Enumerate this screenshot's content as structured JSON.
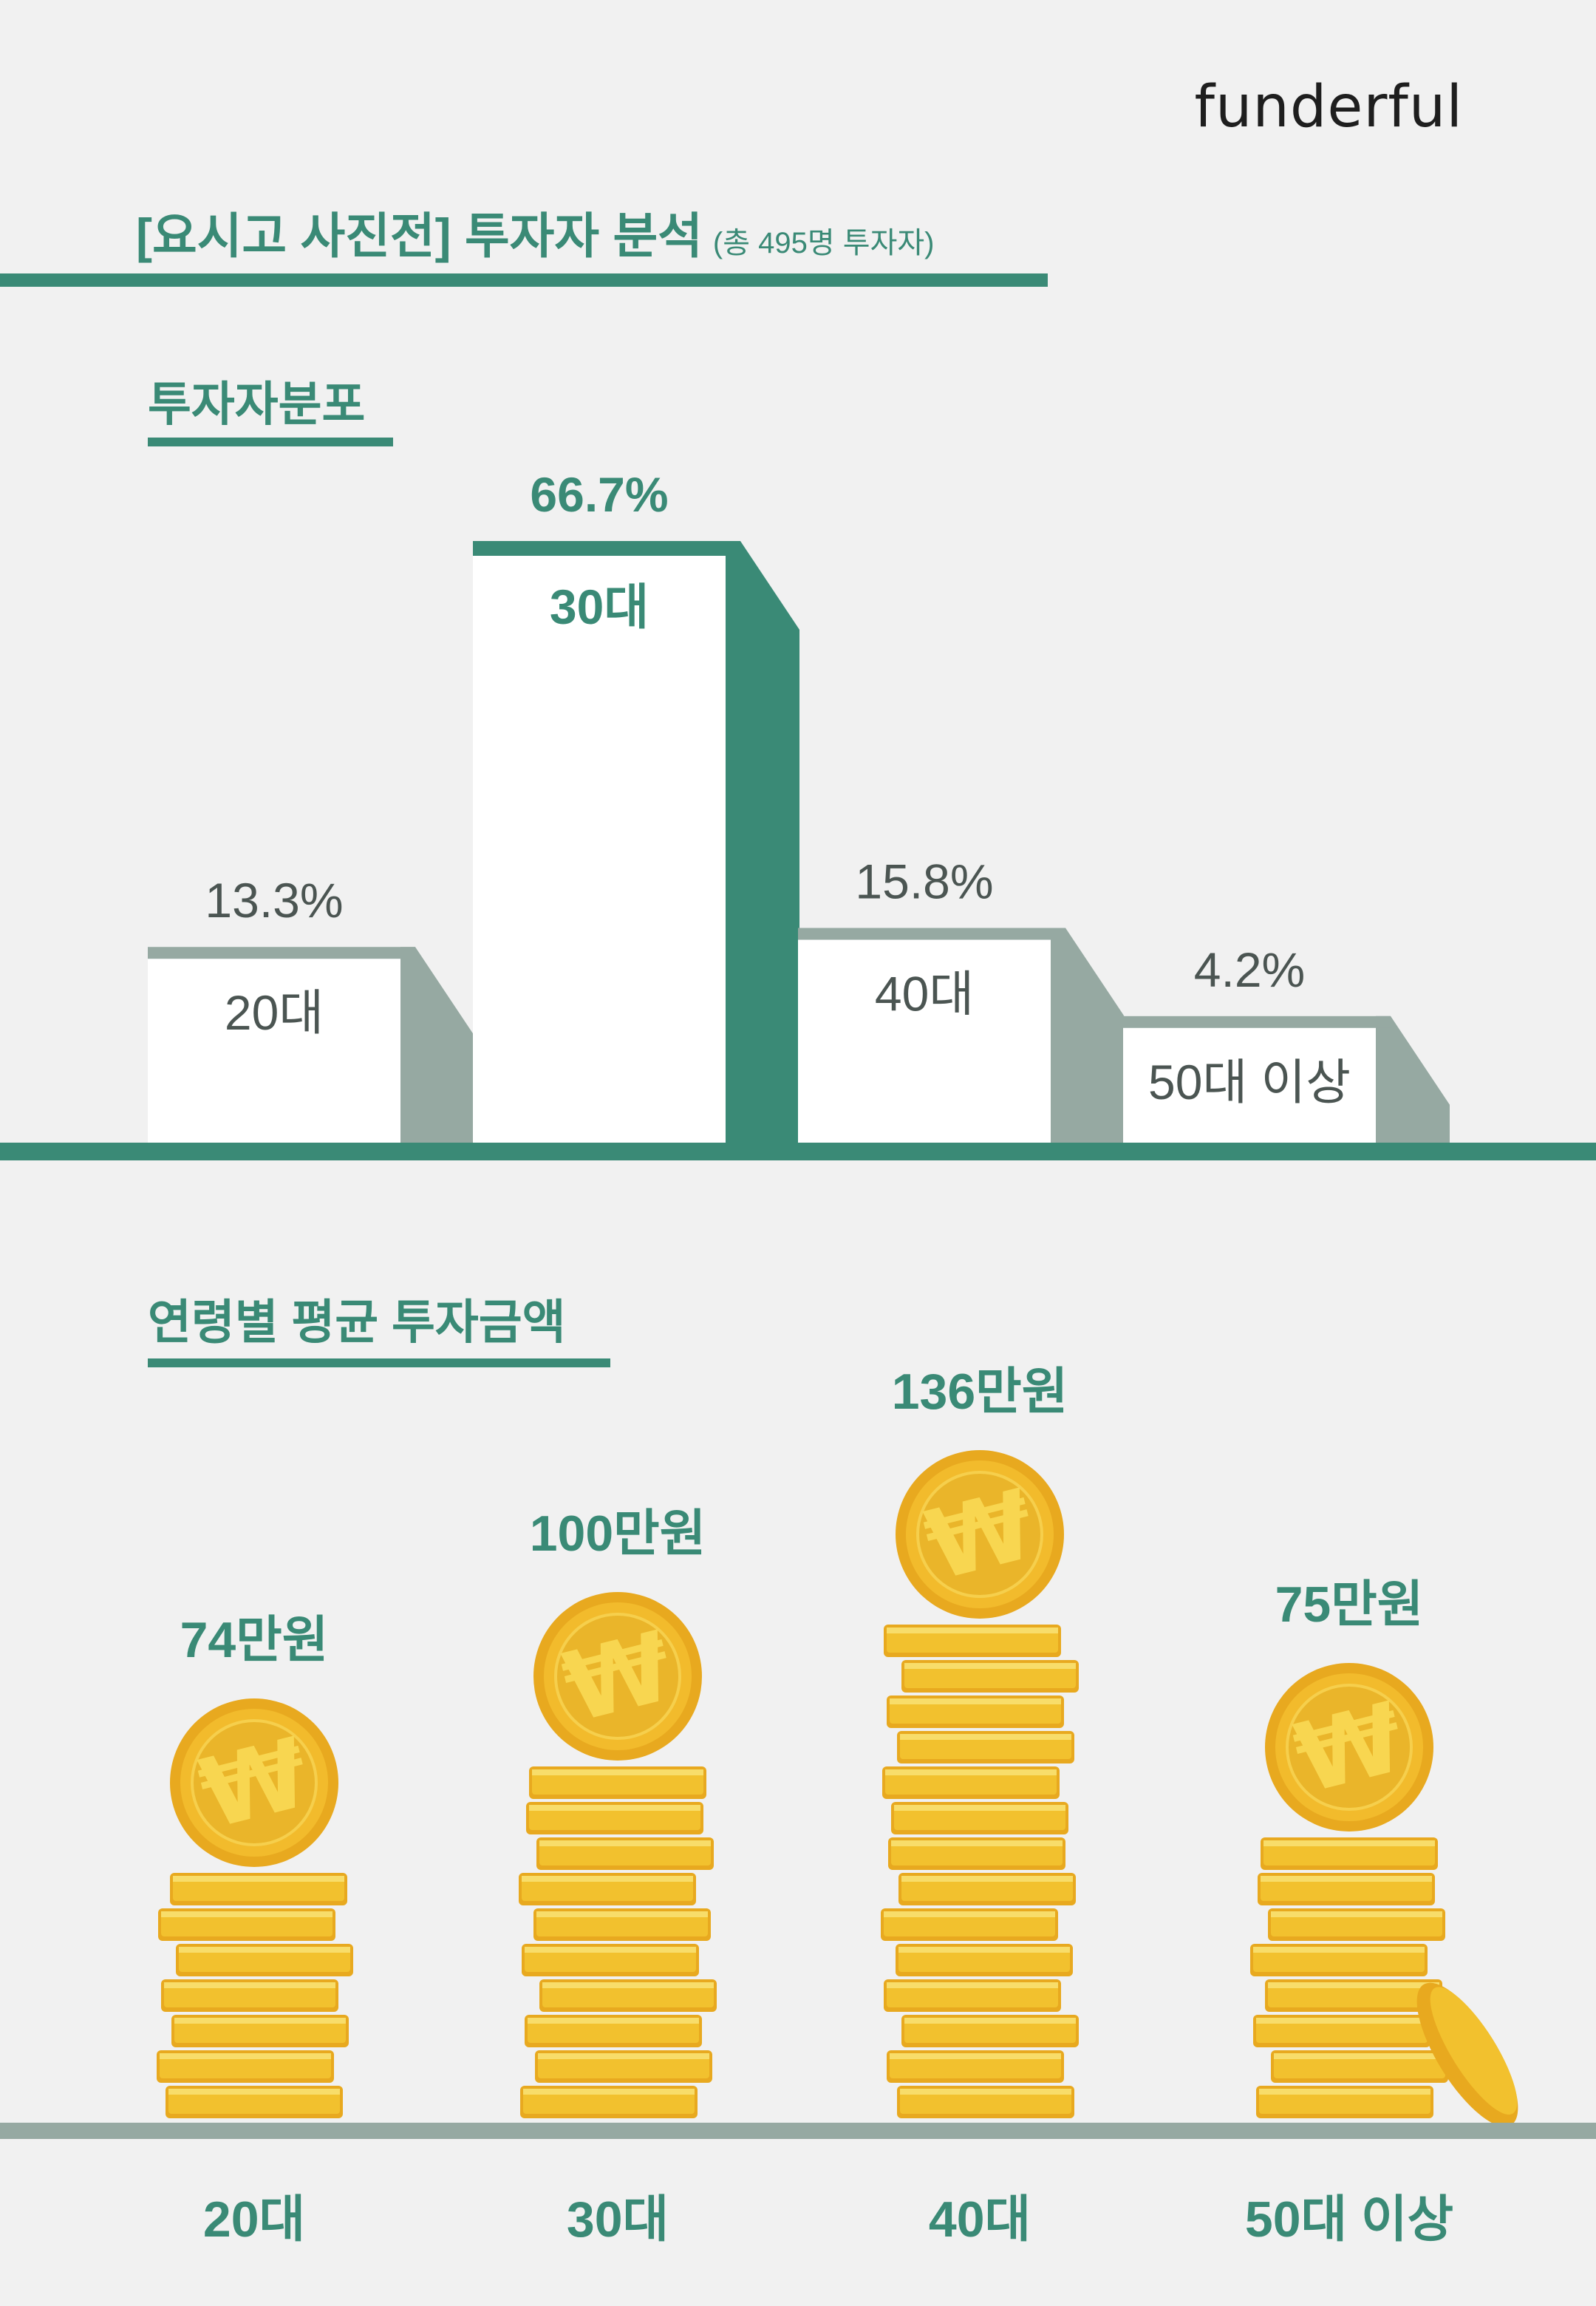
{
  "brand": "funderful",
  "header": {
    "title": "[요시고 사진전] 투자자 분석",
    "subtitle": "(총 495명 투자자)"
  },
  "section1": {
    "title": "투자자분포"
  },
  "section2": {
    "title": "연령별 평균 투자금액"
  },
  "colors": {
    "accent": "#3a8a76",
    "muted": "#96a9a2",
    "bar_face": "#ffffff",
    "coin": "#f2c12e",
    "background": "#f1f1f1"
  },
  "chart_data": [
    {
      "type": "bar",
      "title": "투자자분포",
      "categories": [
        "20대",
        "30대",
        "40대",
        "50대 이상"
      ],
      "values": [
        13.3,
        66.7,
        15.8,
        4.2
      ],
      "value_labels": [
        "13.3%",
        "66.7%",
        "15.8%",
        "4.2%"
      ],
      "unit": "%",
      "highlight_index": 1
    },
    {
      "type": "bar",
      "title": "연령별 평균 투자금액",
      "categories": [
        "20대",
        "30대",
        "40대",
        "50대 이상"
      ],
      "values": [
        74,
        100,
        136,
        75
      ],
      "value_labels": [
        "74만원",
        "100만원",
        "136만원",
        "75만원"
      ],
      "unit": "만원",
      "icon": "won-coin-stack-icon"
    }
  ]
}
